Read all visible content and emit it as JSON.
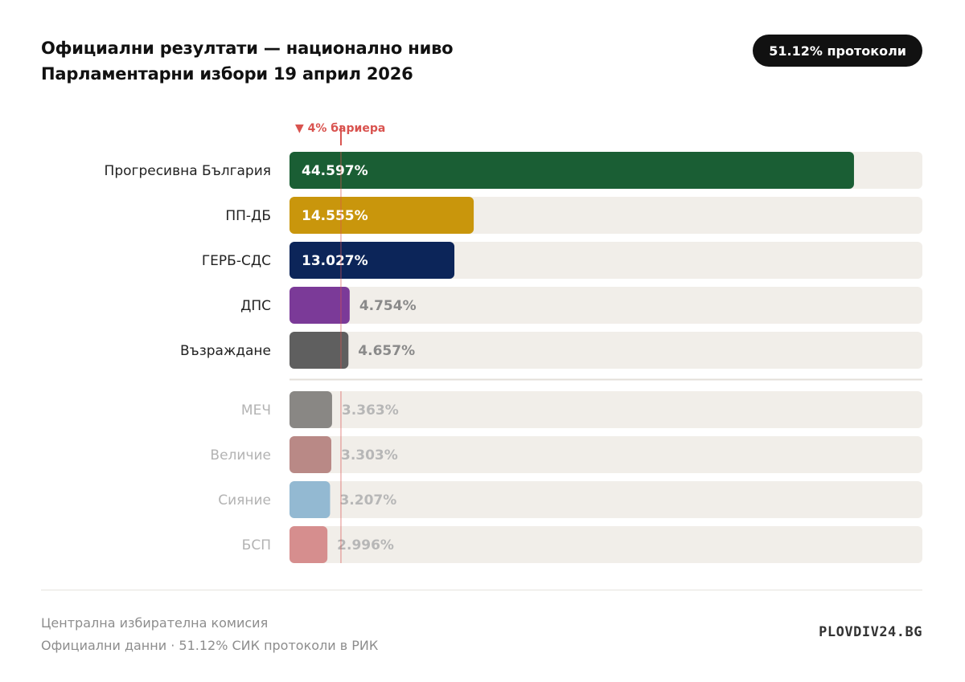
{
  "header": {
    "title_line1": "Официални резултати — национално ниво",
    "title_line2": "Парламентарни избори 19 април 2026",
    "badge": "51.12% протоколи"
  },
  "chart_data": {
    "type": "bar",
    "orientation": "horizontal",
    "xlim": [
      0,
      50
    ],
    "threshold": {
      "value": 4,
      "label": "▼ 4% бариера",
      "color": "#d9534f"
    },
    "above_threshold": [
      {
        "party": "Прогресивна България",
        "value": 44.597,
        "label": "44.597%",
        "color": "#1a5e34"
      },
      {
        "party": "ПП-ДБ",
        "value": 14.555,
        "label": "14.555%",
        "color": "#c9960c"
      },
      {
        "party": "ГЕРБ-СДС",
        "value": 13.027,
        "label": "13.027%",
        "color": "#0c2559"
      },
      {
        "party": "ДПС",
        "value": 4.754,
        "label": "4.754%",
        "color": "#7b3a98"
      },
      {
        "party": "Възраждане",
        "value": 4.657,
        "label": "4.657%",
        "color": "#5f5f5f"
      }
    ],
    "below_threshold": [
      {
        "party": "МЕЧ",
        "value": 3.363,
        "label": "3.363%",
        "color": "#898784"
      },
      {
        "party": "Величие",
        "value": 3.303,
        "label": "3.303%",
        "color": "#b98986"
      },
      {
        "party": "Сияние",
        "value": 3.207,
        "label": "3.207%",
        "color": "#93b9d2"
      },
      {
        "party": "БСП",
        "value": 2.996,
        "label": "2.996%",
        "color": "#d68e8e"
      }
    ],
    "track_color": "#f1eee9"
  },
  "footer": {
    "source": "Централна избирателна комисия",
    "note": "Официални данни · 51.12% СИК протоколи в РИК",
    "brand": "PLOVDIV24.BG"
  }
}
